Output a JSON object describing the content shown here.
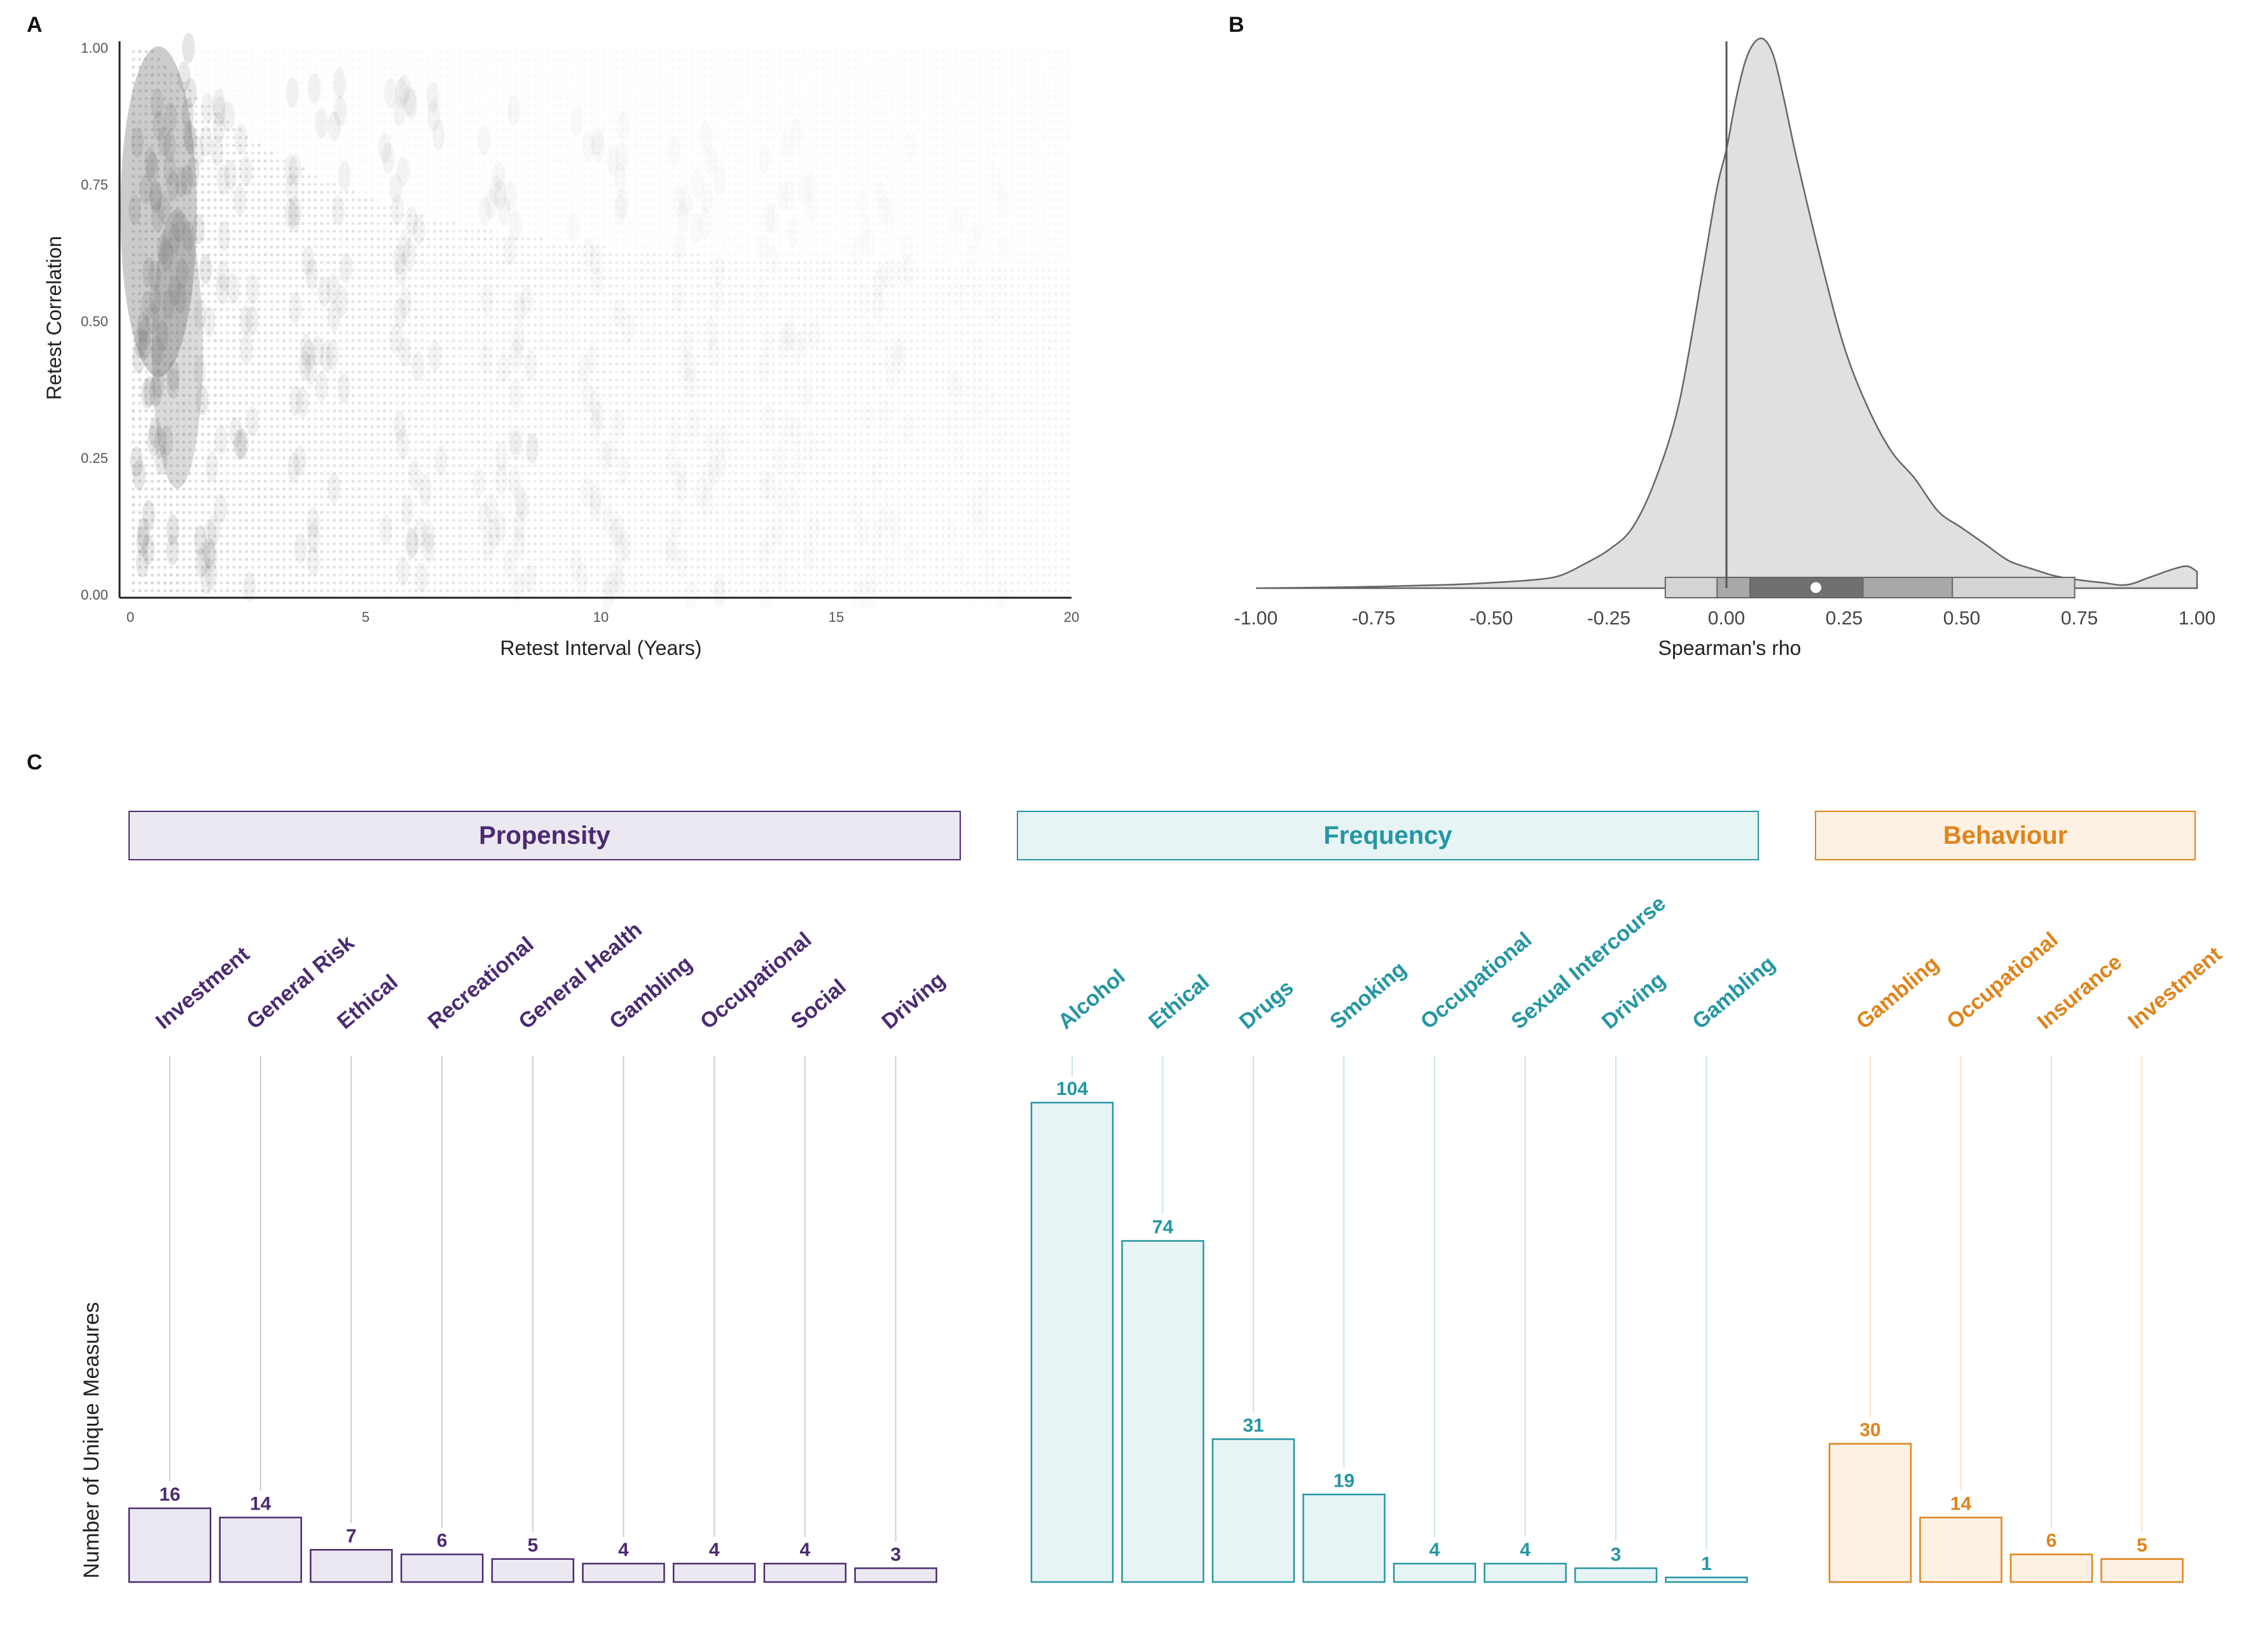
{
  "panels": {
    "a": "A",
    "b": "B",
    "c": "C"
  },
  "chart_data": [
    {
      "panel": "A",
      "type": "scatter",
      "xlabel": "Retest Interval (Years)",
      "ylabel": "Retest Correlation",
      "xlim": [
        0,
        20
      ],
      "ylim": [
        0,
        1
      ],
      "xticks": [
        "0",
        "5",
        "10",
        "15",
        "20"
      ],
      "yticks": [
        "0.00",
        "0.25",
        "0.50",
        "0.75",
        "1.00"
      ],
      "grid": false,
      "color": "#6e6e6e"
    },
    {
      "panel": "B",
      "type": "area",
      "xlabel": "Spearman's rho",
      "xlim": [
        -1,
        1
      ],
      "xticks": [
        "-1.00",
        "-0.75",
        "-0.50",
        "-0.25",
        "0.00",
        "0.25",
        "0.50",
        "0.75",
        "1.00"
      ],
      "reference_line_x": 0,
      "density": {
        "x": [
          -1.0,
          -0.8,
          -0.6,
          -0.5,
          -0.4,
          -0.35,
          -0.3,
          -0.25,
          -0.2,
          -0.15,
          -0.1,
          -0.05,
          -0.02,
          0.0,
          0.02,
          0.04,
          0.06,
          0.08,
          0.1,
          0.12,
          0.15,
          0.2,
          0.25,
          0.3,
          0.35,
          0.4,
          0.45,
          0.5,
          0.55,
          0.6,
          0.65,
          0.7,
          0.75,
          0.8,
          0.85,
          0.9,
          0.95,
          0.98,
          1.0
        ],
        "y": [
          0.0,
          0.002,
          0.006,
          0.01,
          0.016,
          0.024,
          0.045,
          0.07,
          0.11,
          0.2,
          0.34,
          0.58,
          0.73,
          0.8,
          0.89,
          0.96,
          0.995,
          1.0,
          0.97,
          0.9,
          0.78,
          0.6,
          0.44,
          0.33,
          0.25,
          0.2,
          0.14,
          0.11,
          0.08,
          0.05,
          0.035,
          0.022,
          0.015,
          0.01,
          0.006,
          0.02,
          0.035,
          0.04,
          0.03
        ]
      },
      "interval_bands": [
        {
          "from": -0.13,
          "to": 0.74,
          "color": "#d4d4d4"
        },
        {
          "from": -0.02,
          "to": 0.48,
          "color": "#a8a8a8"
        },
        {
          "from": 0.05,
          "to": 0.29,
          "color": "#707070"
        }
      ],
      "point_estimate": 0.19,
      "fill_color": "#e0e0e0"
    },
    {
      "panel": "C",
      "type": "bar",
      "ylabel": "Number of Unique Measures",
      "groups": [
        {
          "name": "Propensity",
          "color": "#4b2a72",
          "fill": "#ece8f1",
          "categories": [
            "Investment",
            "General Risk",
            "Ethical",
            "Recreational",
            "General Health",
            "Gambling",
            "Occupational",
            "Social",
            "Driving"
          ],
          "values": [
            16,
            14,
            7,
            6,
            5,
            4,
            4,
            4,
            3
          ],
          "labels": [
            "16",
            "14",
            "7",
            "6",
            "5",
            "4",
            "4",
            "4",
            "3"
          ]
        },
        {
          "name": "Frequency",
          "color": "#2596a3",
          "fill": "#e6f4f5",
          "categories": [
            "Alcohol",
            "Ethical",
            "Drugs",
            "Smoking",
            "Occupational",
            "Sexual Intercourse",
            "Driving",
            "Gambling"
          ],
          "values": [
            104,
            74,
            31,
            19,
            4,
            4,
            3,
            1
          ],
          "labels": [
            "104",
            "74",
            "31",
            "19",
            "4",
            "4",
            "3",
            "1"
          ]
        },
        {
          "name": "Behaviour",
          "color": "#e0831a",
          "fill": "#fdf1e3",
          "categories": [
            "Gambling",
            "Occupational",
            "Insurance",
            "Investment"
          ],
          "values": [
            30,
            14,
            6,
            5
          ],
          "labels": [
            "30",
            "14",
            "6",
            "5"
          ]
        }
      ]
    }
  ]
}
